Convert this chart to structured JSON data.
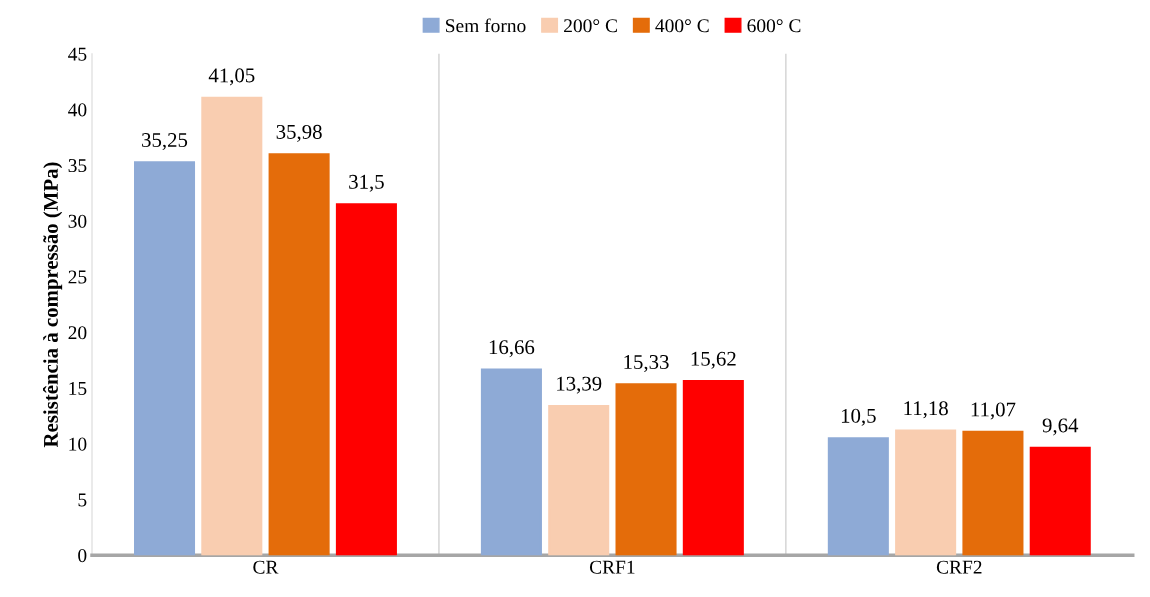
{
  "chart_data": {
    "type": "bar",
    "ylabel": "Resistência à compressão (MPa)",
    "categories": [
      "CR",
      "CRF1",
      "CRF2"
    ],
    "series": [
      {
        "name": "Sem forno",
        "color": "#8eaad6",
        "values": [
          35.25,
          16.66,
          10.5
        ],
        "value_labels": [
          "35,25",
          "16,66",
          "10,5"
        ]
      },
      {
        "name": "200° C",
        "color": "#f9cdb0",
        "values": [
          41.05,
          13.39,
          11.18
        ],
        "value_labels": [
          "41,05",
          "13,39",
          "11,18"
        ]
      },
      {
        "name": "400° C",
        "color": "#e46c0a",
        "values": [
          35.98,
          15.33,
          11.07
        ],
        "value_labels": [
          "35,98",
          "15,33",
          "11,07"
        ]
      },
      {
        "name": "600° C",
        "color": "#ff0000",
        "values": [
          31.5,
          15.62,
          9.64
        ],
        "value_labels": [
          "31,5",
          "15,62",
          "9,64"
        ]
      }
    ],
    "ylim": [
      0,
      45
    ],
    "yticks": [
      0,
      5,
      10,
      15,
      20,
      25,
      30,
      35,
      40,
      45
    ],
    "grid": "x",
    "legend": "top"
  }
}
